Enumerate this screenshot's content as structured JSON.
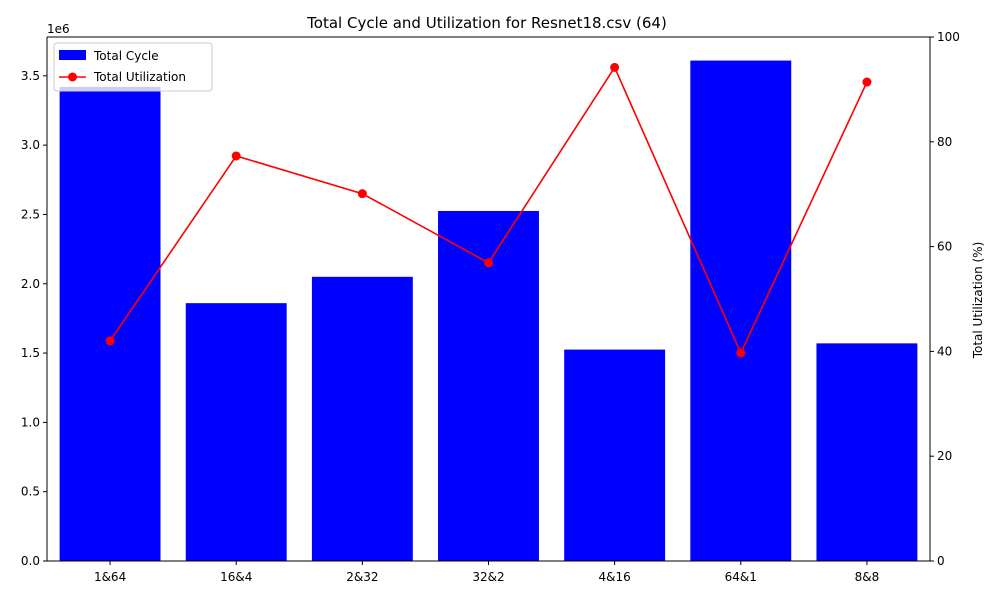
{
  "chart_data": {
    "type": "bar",
    "title": "Total Cycle and Utilization for Resnet18.csv (64)",
    "categories": [
      "1&64",
      "16&4",
      "2&32",
      "32&2",
      "4&16",
      "64&1",
      "8&8"
    ],
    "series": [
      {
        "name": "Total Cycle",
        "type": "bar",
        "axis": "left",
        "color": "#0000ff",
        "values": [
          3420000,
          1860000,
          2050000,
          2525000,
          1525000,
          3610000,
          1570000
        ]
      },
      {
        "name": "Total Utilization",
        "type": "line",
        "axis": "right",
        "color": "#ff0000",
        "values": [
          42.0,
          77.3,
          70.1,
          56.9,
          94.2,
          39.7,
          91.4
        ]
      }
    ],
    "left_axis": {
      "label": "",
      "ylim": [
        0,
        3780000
      ],
      "ticks": [
        0,
        500000,
        1000000,
        1500000,
        2000000,
        2500000,
        3000000,
        3500000
      ],
      "tick_labels": [
        "0.0",
        "0.5",
        "1.0",
        "1.5",
        "2.0",
        "2.5",
        "3.0",
        "3.5"
      ],
      "offset_label": "1e6"
    },
    "right_axis": {
      "label": "Total Utilization (%)",
      "ylim": [
        0,
        100
      ],
      "ticks": [
        0,
        20,
        40,
        60,
        80,
        100
      ],
      "tick_labels": [
        "0",
        "20",
        "40",
        "60",
        "80",
        "100"
      ]
    },
    "legend": {
      "placement": "upper-left",
      "entries": [
        "Total Cycle",
        "Total Utilization"
      ]
    },
    "grid": false
  }
}
